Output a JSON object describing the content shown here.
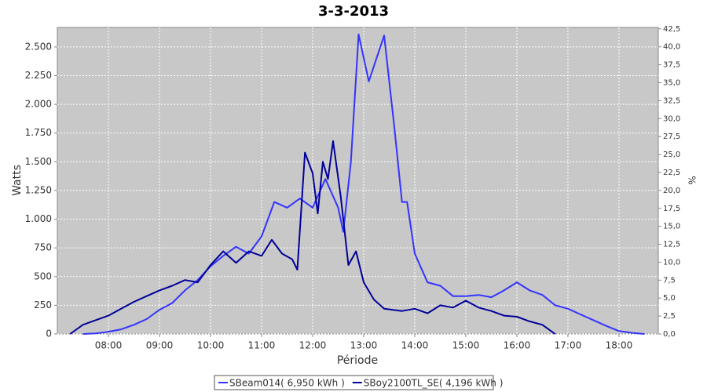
{
  "chart_data": {
    "type": "line",
    "title": "3-3-2013",
    "x_label": "Période",
    "y_label": "Watts",
    "y2_label": "%",
    "xlim": [
      7.0,
      18.77
    ],
    "ylim": [
      0,
      2670
    ],
    "y2lim": [
      0,
      42.7
    ],
    "grid": true,
    "legend": "bottom",
    "xticks": [
      {
        "value": 8,
        "label": "08:00"
      },
      {
        "value": 9,
        "label": "09:00"
      },
      {
        "value": 10,
        "label": "10:00"
      },
      {
        "value": 11,
        "label": "11:00"
      },
      {
        "value": 12,
        "label": "12:00"
      },
      {
        "value": 13,
        "label": "13:00"
      },
      {
        "value": 14,
        "label": "14:00"
      },
      {
        "value": 15,
        "label": "15:00"
      },
      {
        "value": 16,
        "label": "16:00"
      },
      {
        "value": 17,
        "label": "17:00"
      },
      {
        "value": 18,
        "label": "18:00"
      }
    ],
    "yticks": [
      0,
      250,
      500,
      750,
      {
        "value": 1000,
        "label": "1.000"
      },
      {
        "value": 1250,
        "label": "1.250"
      },
      {
        "value": 1500,
        "label": "1.500"
      },
      {
        "value": 1750,
        "label": "1.750"
      },
      {
        "value": 2000,
        "label": "2.000"
      },
      {
        "value": 2250,
        "label": "2.250"
      },
      {
        "value": 2500,
        "label": "2.500"
      }
    ],
    "y2ticks": [
      {
        "value": 0,
        "label": "0,0"
      },
      {
        "value": 2.5,
        "label": "2,5"
      },
      {
        "value": 5,
        "label": "5,0"
      },
      {
        "value": 7.5,
        "label": "7,5"
      },
      {
        "value": 10,
        "label": "10,0"
      },
      {
        "value": 12.5,
        "label": "12,5"
      },
      {
        "value": 15,
        "label": "15,0"
      },
      {
        "value": 17.5,
        "label": "17,5"
      },
      {
        "value": 20,
        "label": "20,0"
      },
      {
        "value": 22.5,
        "label": "22,5"
      },
      {
        "value": 25,
        "label": "25,0"
      },
      {
        "value": 27.5,
        "label": "27,5"
      },
      {
        "value": 30,
        "label": "30,0"
      },
      {
        "value": 32.5,
        "label": "32,5"
      },
      {
        "value": 35,
        "label": "35,0"
      },
      {
        "value": 37.5,
        "label": "37,5"
      },
      {
        "value": 40,
        "label": "40,0"
      },
      {
        "value": 42.5,
        "label": "42,5"
      }
    ],
    "series": [
      {
        "name": "SBeam014( 6,950 kWh )",
        "color": "#3333ff",
        "x": [
          7.5,
          7.75,
          8.0,
          8.25,
          8.5,
          8.75,
          9.0,
          9.25,
          9.5,
          9.75,
          10.0,
          10.25,
          10.5,
          10.75,
          11.0,
          11.25,
          11.5,
          11.75,
          12.0,
          12.25,
          12.5,
          12.6,
          12.75,
          12.9,
          13.1,
          13.4,
          13.6,
          13.75,
          13.85,
          14.0,
          14.25,
          14.5,
          14.75,
          15.0,
          15.25,
          15.5,
          15.75,
          16.0,
          16.25,
          16.5,
          16.75,
          17.0,
          17.25,
          17.5,
          17.75,
          18.0,
          18.25,
          18.5
        ],
        "values": [
          0,
          5,
          20,
          40,
          80,
          130,
          210,
          270,
          380,
          470,
          590,
          680,
          760,
          700,
          850,
          1150,
          1100,
          1180,
          1100,
          1350,
          1100,
          890,
          1500,
          2610,
          2200,
          2600,
          1800,
          1150,
          1150,
          700,
          450,
          420,
          330,
          330,
          340,
          320,
          380,
          450,
          380,
          340,
          250,
          220,
          170,
          120,
          70,
          25,
          10,
          0
        ]
      },
      {
        "name": "SBoy2100TL_SE( 4,196 kWh )",
        "color": "#000099",
        "x": [
          7.25,
          7.5,
          7.75,
          8.0,
          8.25,
          8.5,
          8.75,
          9.0,
          9.25,
          9.5,
          9.75,
          10.0,
          10.25,
          10.5,
          10.75,
          11.0,
          11.2,
          11.4,
          11.6,
          11.7,
          11.85,
          12.0,
          12.1,
          12.2,
          12.3,
          12.4,
          12.55,
          12.7,
          12.85,
          13.0,
          13.2,
          13.4,
          13.75,
          14.0,
          14.25,
          14.5,
          14.75,
          15.0,
          15.25,
          15.5,
          15.75,
          16.0,
          16.25,
          16.5,
          16.75
        ],
        "values": [
          0,
          80,
          120,
          160,
          220,
          280,
          330,
          380,
          420,
          470,
          450,
          600,
          720,
          620,
          720,
          680,
          820,
          700,
          650,
          560,
          1580,
          1400,
          1050,
          1500,
          1350,
          1680,
          1200,
          600,
          720,
          450,
          300,
          220,
          200,
          220,
          180,
          250,
          230,
          290,
          230,
          200,
          160,
          150,
          110,
          80,
          0
        ]
      }
    ]
  }
}
